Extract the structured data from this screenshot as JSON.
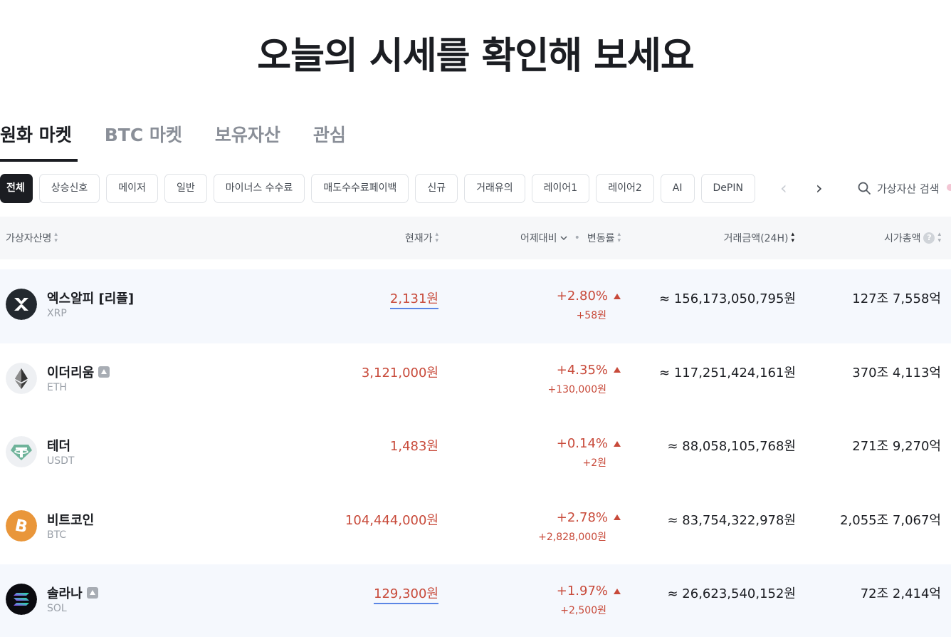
{
  "headline": "오늘의 시세를 확인해 보세요",
  "tabs": [
    {
      "label": "원화 마켓",
      "active": true
    },
    {
      "label": "BTC 마켓",
      "active": false
    },
    {
      "label": "보유자산",
      "active": false
    },
    {
      "label": "관심",
      "active": false
    }
  ],
  "filters": [
    "전체",
    "상승신호",
    "메이저",
    "일반",
    "마이너스 수수료",
    "매도수수료페이백",
    "신규",
    "거래유의",
    "레이어1",
    "레이어2",
    "AI",
    "DePIN"
  ],
  "search": {
    "label": "가상자산 검색"
  },
  "columns": {
    "name": "가상자산명",
    "price": "현재가",
    "change_basis": "어제대비",
    "change_rate": "변동률",
    "volume": "거래금액(24H)",
    "market_cap": "시가총액",
    "help": "?"
  },
  "colors": {
    "up": "#c84a3a",
    "link_underline": "#5b86e5",
    "dark": "#1b1d22"
  },
  "coins": [
    {
      "name": "엑스알피 [리플]",
      "symbol": "XRP",
      "icon": "xrp-logo-icon",
      "price": "2,131원",
      "change_rate": "+2.80%",
      "change_amount": "+58원",
      "volume": "≈ 156,173,050,795원",
      "market_cap": "127조 7,558억"
    },
    {
      "name": "이더리움",
      "symbol": "ETH",
      "icon": "eth-logo-icon",
      "price": "3,121,000원",
      "change_rate": "+4.35%",
      "change_amount": "+130,000원",
      "volume": "≈ 117,251,424,161원",
      "market_cap": "370조 4,113억"
    },
    {
      "name": "테더",
      "symbol": "USDT",
      "icon": "usdt-logo-icon",
      "price": "1,483원",
      "change_rate": "+0.14%",
      "change_amount": "+2원",
      "volume": "≈ 88,058,105,768원",
      "market_cap": "271조 9,270억"
    },
    {
      "name": "비트코인",
      "symbol": "BTC",
      "icon": "btc-logo-icon",
      "price": "104,444,000원",
      "change_rate": "+2.78%",
      "change_amount": "+2,828,000원",
      "volume": "≈ 83,754,322,978원",
      "market_cap": "2,055조 7,067억"
    },
    {
      "name": "솔라나",
      "symbol": "SOL",
      "icon": "sol-logo-icon",
      "price": "129,300원",
      "change_rate": "+1.97%",
      "change_amount": "+2,500원",
      "volume": "≈ 26,623,540,152원",
      "market_cap": "72조 2,414억"
    }
  ]
}
